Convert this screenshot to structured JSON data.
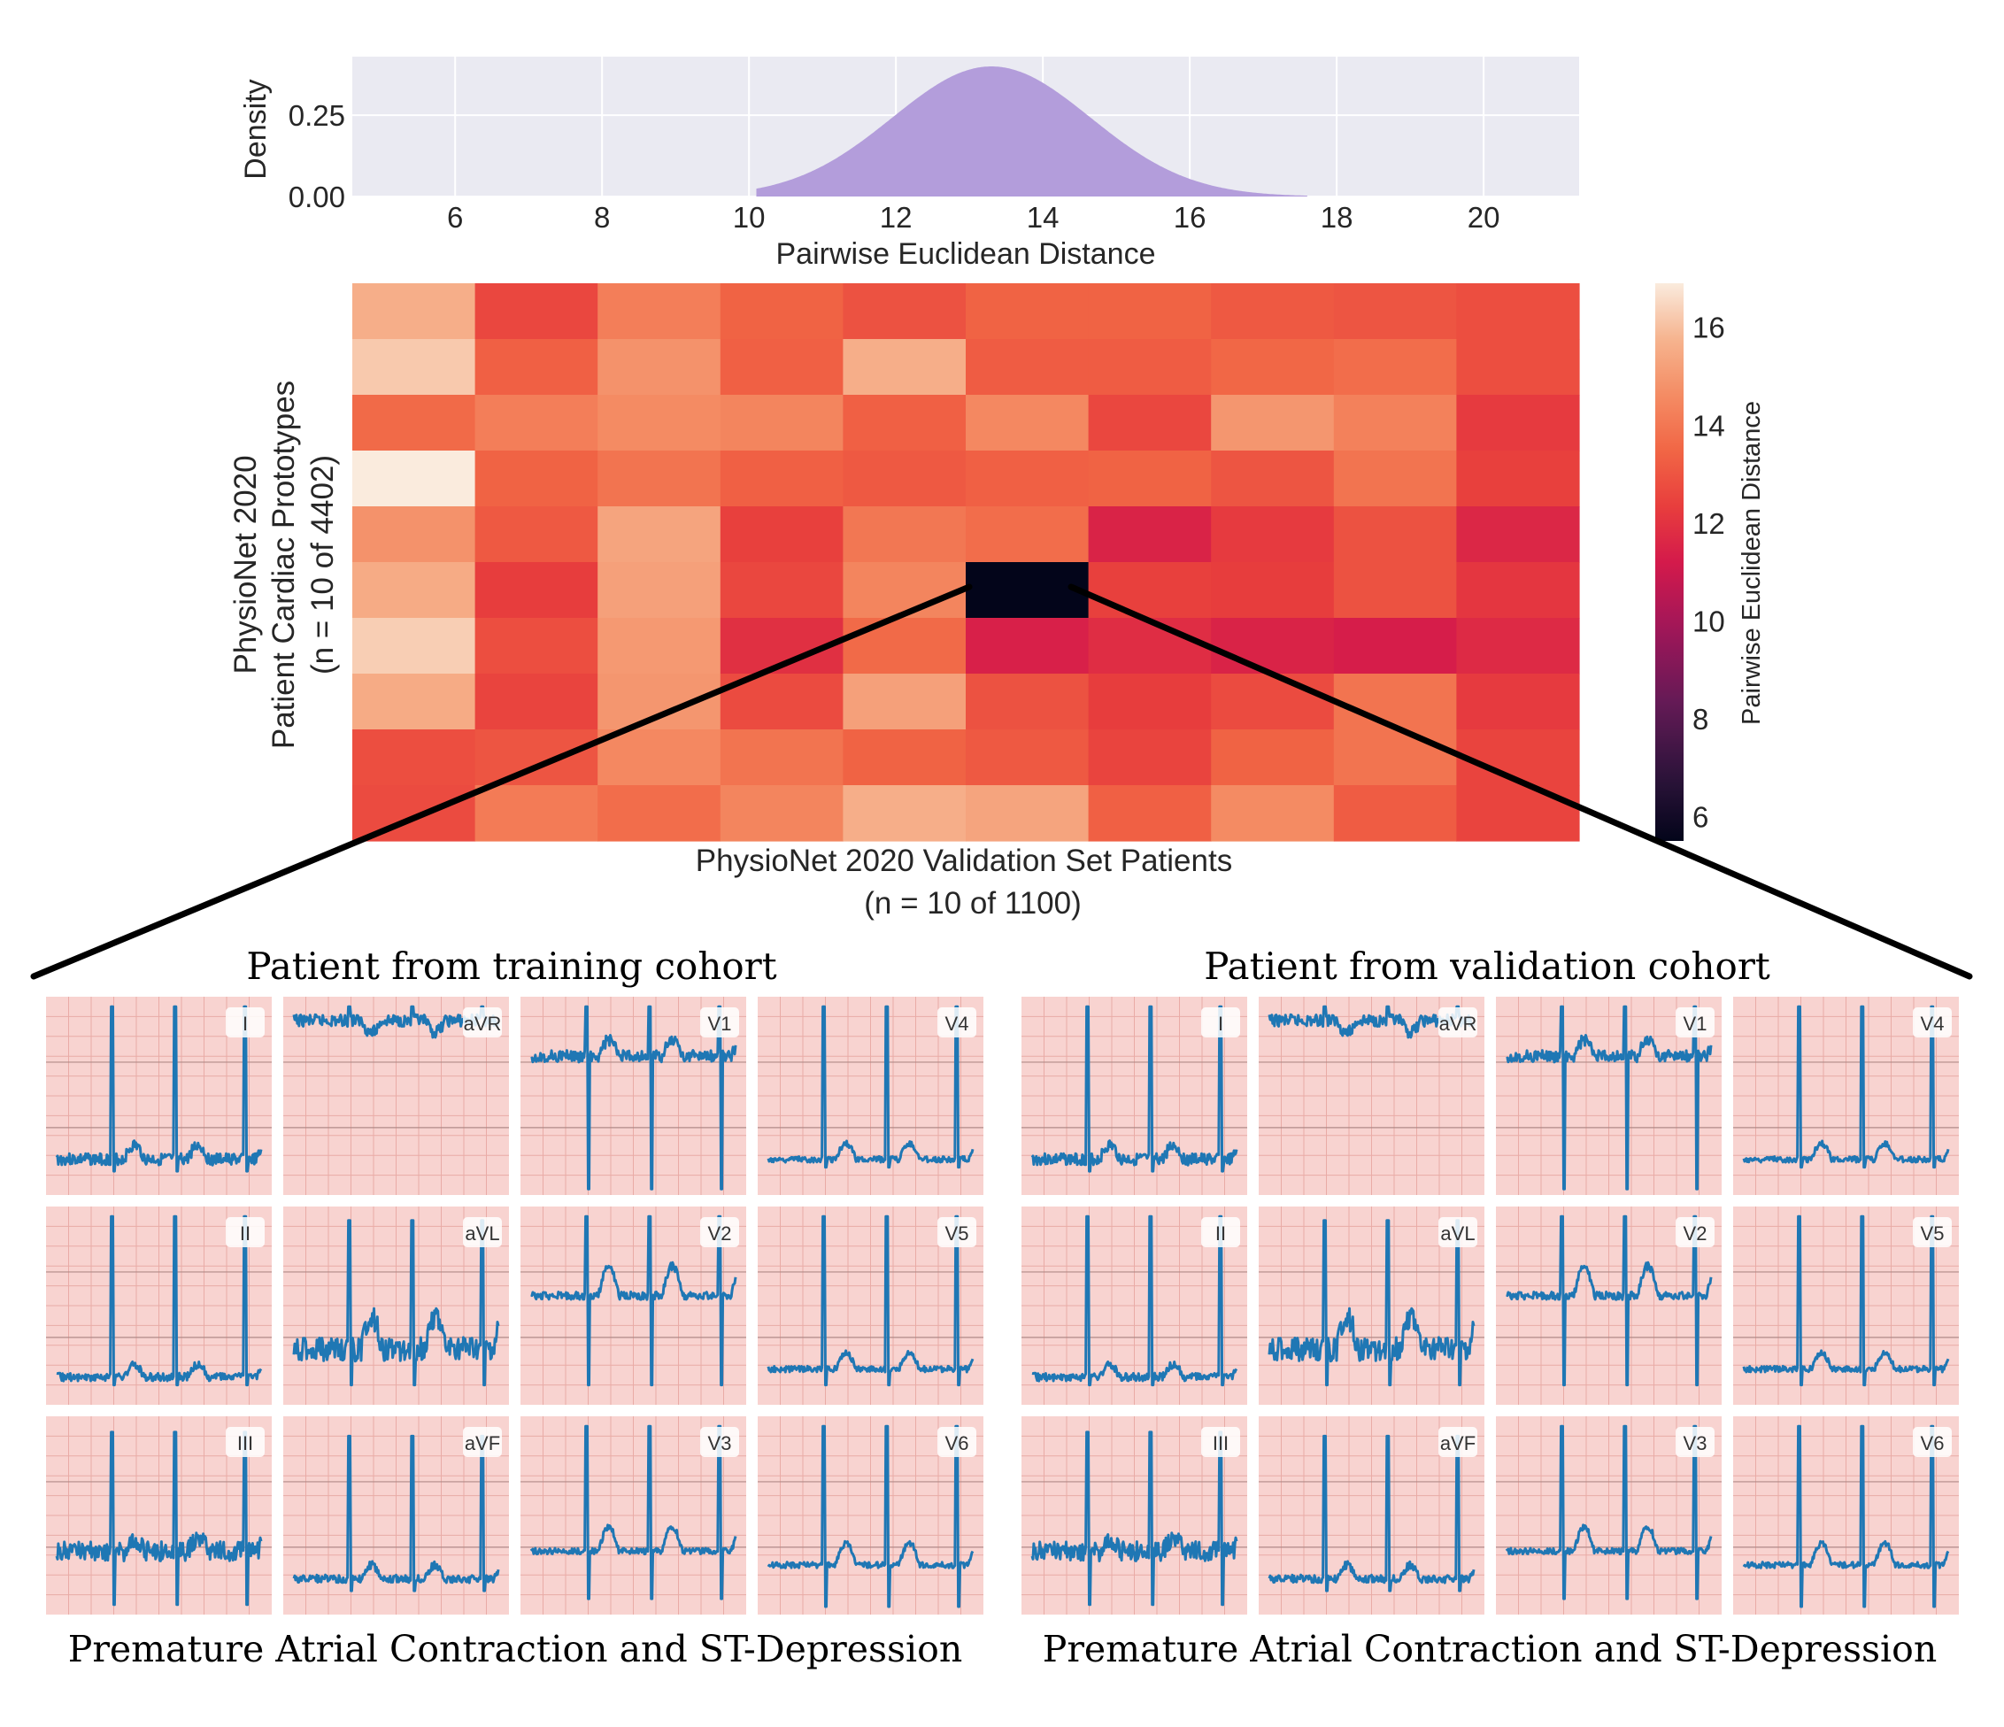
{
  "chart_data": [
    {
      "type": "area",
      "name": "density",
      "xlabel": "Pairwise Euclidean Distance",
      "ylabel": "Density",
      "xlim": [
        4.6,
        21.3
      ],
      "ylim": [
        0,
        0.43
      ],
      "xticks": [
        "6",
        "8",
        "10",
        "12",
        "14",
        "16",
        "18",
        "20"
      ],
      "yticks": [
        "0.00",
        "0.25"
      ],
      "mean": 13.3,
      "sd": 1.35,
      "peak": 0.4,
      "range": [
        10.1,
        17.6
      ],
      "fill_color": "#b39ddb"
    },
    {
      "type": "heatmap",
      "name": "distance-heatmap",
      "ylabel_lines": [
        "PhysioNet 2020",
        "Patient Cardiac Prototypes",
        "(n = 10 of 4402)"
      ],
      "xlabel_lines": [
        "PhysioNet 2020 Validation Set Patients",
        "(n = 10 of 1100)"
      ],
      "colorbar_label": "Pairwise Euclidean Distance",
      "colorbar_ticks": [
        "16",
        "14",
        "12",
        "10",
        "8",
        "6"
      ],
      "vmin": 5.5,
      "vmax": 16.9,
      "highlight": {
        "row": 5,
        "col": 5
      },
      "values": [
        [
          15.6,
          12.6,
          14.2,
          13.4,
          12.9,
          13.4,
          13.4,
          13.1,
          13.0,
          12.8
        ],
        [
          16.2,
          13.3,
          14.8,
          13.3,
          15.6,
          13.2,
          13.2,
          13.5,
          13.7,
          12.8
        ],
        [
          13.6,
          14.2,
          14.6,
          14.4,
          13.3,
          14.5,
          12.6,
          14.9,
          14.3,
          12.2
        ],
        [
          16.9,
          13.4,
          13.9,
          13.3,
          13.1,
          13.3,
          13.4,
          13.0,
          13.9,
          12.4
        ],
        [
          14.8,
          13.1,
          15.3,
          12.4,
          14.0,
          13.7,
          11.5,
          12.2,
          12.9,
          11.6
        ],
        [
          15.5,
          12.3,
          15.2,
          12.6,
          14.4,
          5.5,
          12.4,
          12.3,
          12.9,
          12.1
        ],
        [
          16.3,
          12.8,
          15.0,
          11.9,
          13.6,
          11.4,
          11.8,
          11.5,
          11.3,
          11.7
        ],
        [
          15.5,
          12.5,
          14.9,
          12.7,
          15.2,
          12.9,
          12.3,
          12.7,
          13.9,
          12.2
        ],
        [
          12.8,
          13.0,
          14.5,
          13.9,
          13.4,
          13.1,
          12.5,
          13.4,
          13.9,
          12.5
        ],
        [
          12.7,
          14.1,
          13.7,
          14.4,
          15.6,
          15.3,
          13.3,
          14.6,
          13.2,
          12.5
        ]
      ]
    }
  ],
  "ecg_panels": {
    "left_title": "Patient from training cohort",
    "right_title": "Patient from validation cohort",
    "left_caption": "Premature Atrial Contraction and ST-Depression",
    "right_caption": "Premature Atrial Contraction and ST-Depression",
    "leads": [
      "I",
      "aVR",
      "V1",
      "V4",
      "II",
      "aVL",
      "V2",
      "V5",
      "III",
      "aVF",
      "V3",
      "V6"
    ],
    "trace_color": "#1f77b4",
    "grid_background": "#f8d3d0"
  }
}
